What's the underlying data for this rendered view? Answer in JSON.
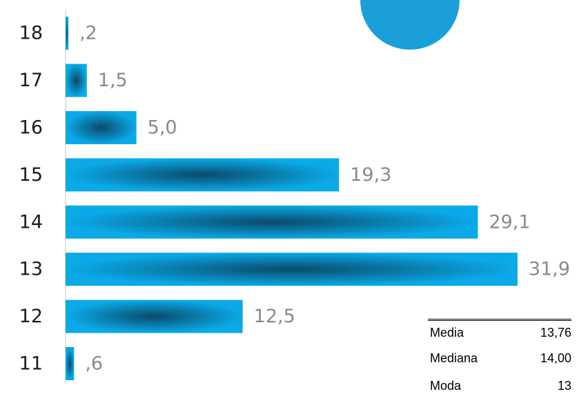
{
  "chart_data": {
    "type": "bar",
    "orientation": "horizontal",
    "categories": [
      "18",
      "17",
      "16",
      "15",
      "14",
      "13",
      "12",
      "11"
    ],
    "values": [
      0.2,
      1.5,
      5.0,
      19.3,
      29.1,
      31.9,
      12.5,
      0.6
    ],
    "value_labels": [
      ",2",
      "1,5",
      "5,0",
      "19,3",
      "29,1",
      "31,9",
      "12,5",
      ",6"
    ],
    "xlim": [
      0,
      32
    ],
    "grid": false,
    "colors": {
      "bar_light": "#0aaae8",
      "bar_dark": "#0a4a6a",
      "decoration": "#1a9fd9"
    }
  },
  "stats": [
    {
      "label": "Media",
      "value": "13,76"
    },
    {
      "label": "Mediana",
      "value": "14,00"
    },
    {
      "label": "Moda",
      "value": "13"
    }
  ]
}
